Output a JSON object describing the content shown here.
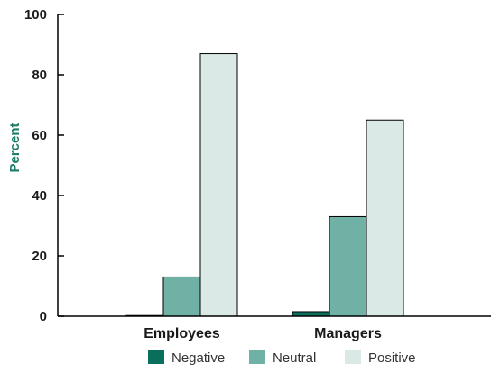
{
  "chart_data": {
    "type": "bar",
    "title": "",
    "xlabel": "",
    "ylabel": "Percent",
    "ylim": [
      0,
      100
    ],
    "yticks": [
      0,
      20,
      40,
      60,
      80,
      100
    ],
    "grid": false,
    "legend_position": "bottom",
    "categories": [
      "Employees",
      "Managers"
    ],
    "series": [
      {
        "name": "Negative",
        "values": [
          0,
          1.5
        ],
        "color": "#0a6e5c"
      },
      {
        "name": "Neutral",
        "values": [
          13,
          33
        ],
        "color": "#6fb1a4"
      },
      {
        "name": "Positive",
        "values": [
          87,
          65
        ],
        "color": "#dbe9e6"
      }
    ],
    "colors": {
      "axis": "#000000",
      "bar_stroke": "#000000",
      "ylabel": "#1e7d67"
    }
  }
}
